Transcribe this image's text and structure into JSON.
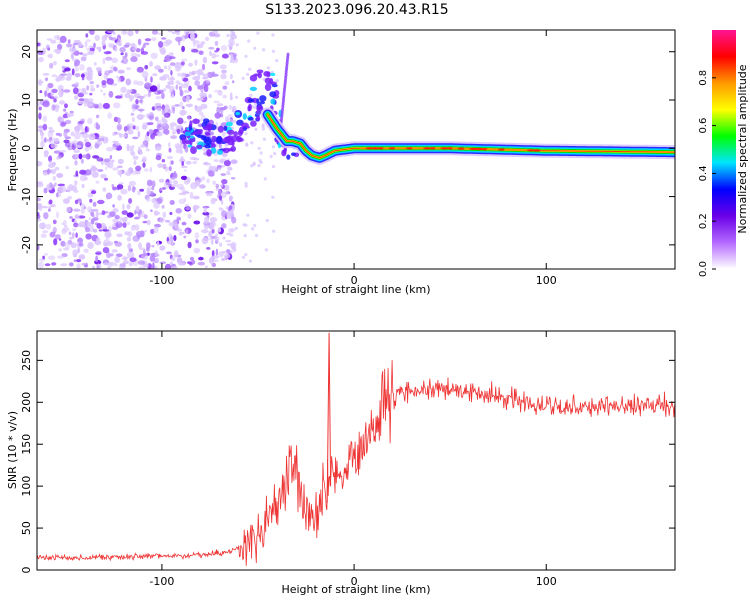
{
  "title": "S133.2023.096.20.43.R15",
  "chart_data": [
    {
      "type": "heatmap",
      "xlabel": "Height of straight line (km)",
      "ylabel": "Frequency (Hz)",
      "xlim": [
        -165,
        167
      ],
      "ylim": [
        -25,
        24.5
      ],
      "xticks": [
        -100,
        0,
        100
      ],
      "yticks": [
        -20,
        -10,
        0,
        10,
        20
      ],
      "grid": false,
      "colorbar": {
        "label": "Normalized spectral amplitude",
        "range": [
          0,
          1
        ],
        "ticks": [
          "0.0",
          "0.2",
          "0.4",
          "0.6",
          "0.8"
        ],
        "colors": [
          "#ffffff",
          "#b469ff",
          "#6a00e8",
          "#0000ff",
          "#00e5ff",
          "#00ff00",
          "#ffff00",
          "#ff9900",
          "#ff0000",
          "#ff1493"
        ]
      },
      "signal_track": {
        "x": [
          -75,
          -65,
          -55,
          -50,
          -45,
          -40,
          -35,
          -32,
          -28,
          -25,
          -22,
          -18,
          -15,
          -10,
          0,
          20,
          50,
          100,
          167
        ],
        "y": [
          2,
          2.5,
          3.5,
          5,
          7,
          4,
          1.5,
          1.5,
          1,
          -0.5,
          -1.5,
          -2,
          -1.5,
          -0.5,
          0,
          0,
          0,
          -0.5,
          -0.8
        ]
      }
    },
    {
      "type": "line",
      "xlabel": "Height of straight line (km)",
      "ylabel": "SNR (10 * v/v)",
      "xlim": [
        -165,
        167
      ],
      "ylim": [
        0,
        285
      ],
      "xticks": [
        -100,
        0,
        100
      ],
      "yticks": [
        0,
        50,
        100,
        150,
        200,
        250
      ],
      "grid": false,
      "color": "#ee3333",
      "series": [
        {
          "x": [
            -165,
            -140,
            -110,
            -80,
            -65,
            -55,
            -45,
            -40,
            -35,
            -30,
            -25,
            -20,
            -15,
            -12,
            -10,
            -5,
            0,
            5,
            10,
            15,
            20,
            25,
            30,
            40,
            50,
            60,
            70,
            80,
            90,
            100,
            110,
            120,
            130,
            140,
            150,
            160,
            167
          ],
          "values": [
            15,
            15,
            16,
            18,
            22,
            30,
            55,
            75,
            100,
            110,
            70,
            60,
            100,
            120,
            110,
            115,
            140,
            150,
            170,
            190,
            205,
            212,
            215,
            216,
            215,
            212,
            208,
            205,
            200,
            198,
            195,
            195,
            195,
            195,
            195,
            195,
            195
          ]
        }
      ]
    }
  ]
}
